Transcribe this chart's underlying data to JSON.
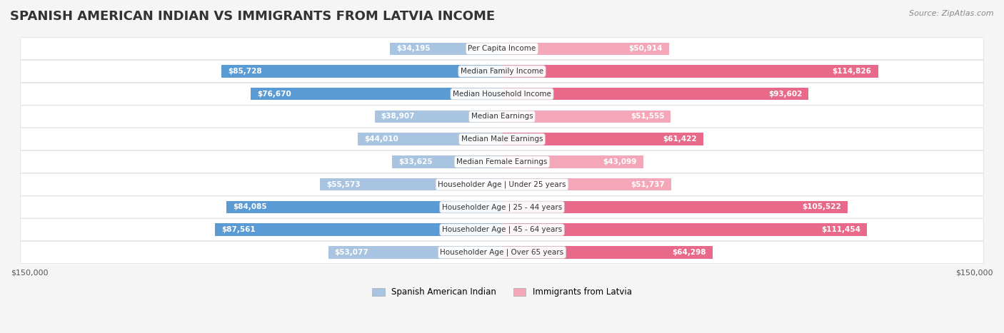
{
  "title": "SPANISH AMERICAN INDIAN VS IMMIGRANTS FROM LATVIA INCOME",
  "source": "Source: ZipAtlas.com",
  "categories": [
    "Per Capita Income",
    "Median Family Income",
    "Median Household Income",
    "Median Earnings",
    "Median Male Earnings",
    "Median Female Earnings",
    "Householder Age | Under 25 years",
    "Householder Age | 25 - 44 years",
    "Householder Age | 45 - 64 years",
    "Householder Age | Over 65 years"
  ],
  "left_values": [
    34195,
    85728,
    76670,
    38907,
    44010,
    33625,
    55573,
    84085,
    87561,
    53077
  ],
  "right_values": [
    50914,
    114826,
    93602,
    51555,
    61422,
    43099,
    51737,
    105522,
    111454,
    64298
  ],
  "left_labels": [
    "$34,195",
    "$85,728",
    "$76,670",
    "$38,907",
    "$44,010",
    "$33,625",
    "$55,573",
    "$84,085",
    "$87,561",
    "$53,077"
  ],
  "right_labels": [
    "$50,914",
    "$114,826",
    "$93,602",
    "$51,555",
    "$61,422",
    "$43,099",
    "$51,737",
    "$105,522",
    "$111,454",
    "$64,298"
  ],
  "left_color_light": "#a8c4e0",
  "left_color_dark": "#5b9bd5",
  "right_color_light": "#f4a7b9",
  "right_color_dark": "#e8698a",
  "max_value": 150000,
  "legend_left": "Spanish American Indian",
  "legend_right": "Immigrants from Latvia",
  "bg_color": "#f5f5f5",
  "bar_bg_color": "#ffffff",
  "title_fontsize": 13,
  "label_fontsize": 8.5,
  "bar_height": 0.55,
  "threshold_dark_label": 60000
}
